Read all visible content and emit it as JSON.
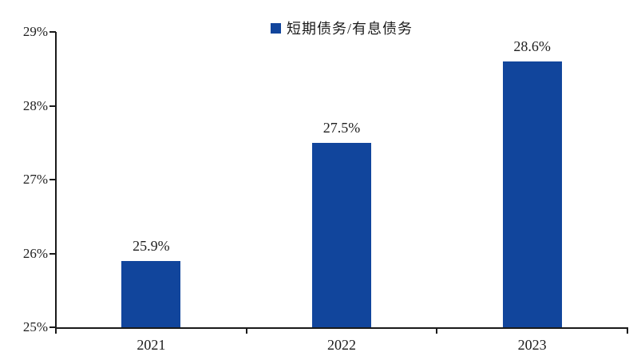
{
  "chart_data": {
    "type": "bar",
    "title": "",
    "legend": [
      {
        "label": "短期债务/有息债务",
        "marker_color": "#11459c"
      }
    ],
    "legend_position": "top-center",
    "categories": [
      "2021",
      "2022",
      "2023"
    ],
    "values": [
      25.9,
      27.5,
      28.6
    ],
    "data_labels": [
      "25.9%",
      "27.5%",
      "28.6%"
    ],
    "ylabel": "",
    "xlabel": "",
    "ylim": [
      25,
      29
    ],
    "ytick_step": 1,
    "ytick_labels": [
      "25%",
      "26%",
      "27%",
      "28%",
      "29%"
    ],
    "grid": false,
    "bar_color": "#11459c",
    "axis_color": "#1a1a1a",
    "text_color": "#1f1f1f",
    "background_color": "#ffffff"
  }
}
